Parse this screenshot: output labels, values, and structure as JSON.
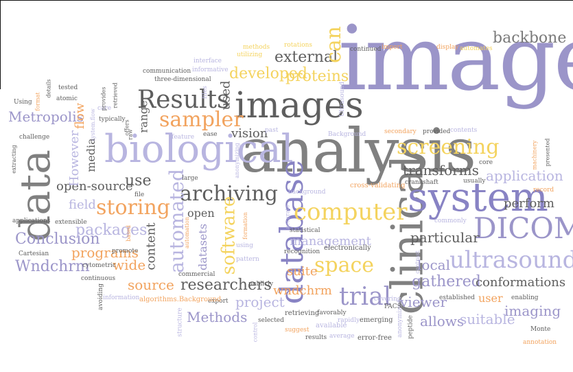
{
  "colors": {
    "lavender": "#9b95c9",
    "grey": "#808080",
    "orange": "#f2a35e",
    "yellow": "#f4d35e",
    "light_lavender": "#b8b5e0",
    "dark_grey": "#5e5e5e"
  },
  "words": {
    "image": "image",
    "analysis": "analysis",
    "clinical": "clinical",
    "data": "data",
    "system": "system",
    "images": "images",
    "biological": "biological",
    "database": "database",
    "DICOM": "DICOM",
    "ultrasound": "ultrasound",
    "computer": "computer",
    "trial": "trial",
    "screening": "screening",
    "archiving": "archiving",
    "Results": "Results",
    "sampler": "sampler",
    "storing": "storing",
    "automated": "automated",
    "software": "software",
    "space": "space",
    "Conclusion": "Conclusion",
    "Metropolis": "Metropolis",
    "Wndchrm": "Wndchrm",
    "programs": "programs",
    "packages": "packages",
    "open_source": "open-source",
    "external": "external",
    "developed": "developed",
    "proteins": "proteins",
    "can": "can",
    "backbone": "backbone",
    "transforms": "transforms",
    "application": "application",
    "perform": "perform",
    "particular": "particular",
    "local": "local",
    "gathered": "gathered",
    "conformations": "conformations",
    "imaging": "imaging",
    "viewer": "viewer",
    "allows": "allows",
    "suitable": "suitable",
    "user": "user",
    "researchers": "researchers",
    "Methods": "Methods",
    "project": "project",
    "wndchrm": "wndchrm",
    "source": "source",
    "wide": "wide",
    "content": "content",
    "datasets": "datasets",
    "suite": "suite",
    "management": "management",
    "field": "field",
    "use": "use",
    "range": "range",
    "vision": "vision",
    "media": "media",
    "However": "However",
    "flow": "flow",
    "used": "used",
    "open": "open",
    "Cartesian": "Cartesian",
    "cytometric": "cytometric",
    "continuous": "continuous",
    "promote": "promote",
    "based": "based",
    "commercial": "commercial",
    "export": "export",
    "information": "information",
    "algorithms_background": "algorithms.Background",
    "structure": "structure",
    "avoiding": "avoiding",
    "control": "control",
    "selected": "selected",
    "retrieving": "retrieving",
    "favorably": "favorably",
    "results": "results",
    "average": "average",
    "error_free": "error-free",
    "suggest": "suggest",
    "available": "available",
    "rapidly": "rapidly",
    "emerging": "emerging",
    "anonymized": "anonymized",
    "peptide": "peptide",
    "PACS": "PACS",
    "covering": "covering",
    "established": "established",
    "enabling": "enabling",
    "Monte": "Monte",
    "annotation": "annotation",
    "electronically": "electronically",
    "recognition": "recognition",
    "statistical": "statistical",
    "publicly": "publicly",
    "pattern": "pattern",
    "using": "using",
    "contrast": "contrast",
    "commonly": "commonly",
    "crankshaft": "crankshaft",
    "cross_validating": "cross-validating",
    "usually": "usually",
    "record": "record",
    "background": "background",
    "accurate": "accurate",
    "formation": "formation",
    "automation": "automation",
    "large": "large",
    "file": "file",
    "feature": "feature",
    "ease": "ease",
    "anonymizing": "anonymizing",
    "past": "past",
    "Background": "Background",
    "secondary": "secondary",
    "provided": "provided",
    "contents": "contents",
    "presented": "presented",
    "machinery": "machinery",
    "core": "core",
    "display": "display",
    "automates": "automates",
    "import": "import",
    "continued": "continued",
    "rotations": "rotations",
    "utilizing": "utilizing",
    "methods": "methods",
    "interface": "interface",
    "informative": "informative",
    "communication": "communication",
    "three_dimensional": "three-dimensional",
    "files": "files",
    "offers": "offers",
    "raw": "raw",
    "typically": "typically",
    "system_flow": "system.flow",
    "care": "care",
    "provides": "provides",
    "retrieved": "retrieved",
    "tested": "tested",
    "atomic": "atomic",
    "details": "details",
    "format": "format",
    "Using": "Using",
    "challenge": "challenge",
    "extracting": "extracting",
    "extensible": "extensible",
    "applications": "applications",
    "Ultrasound": "Ultrasound"
  }
}
